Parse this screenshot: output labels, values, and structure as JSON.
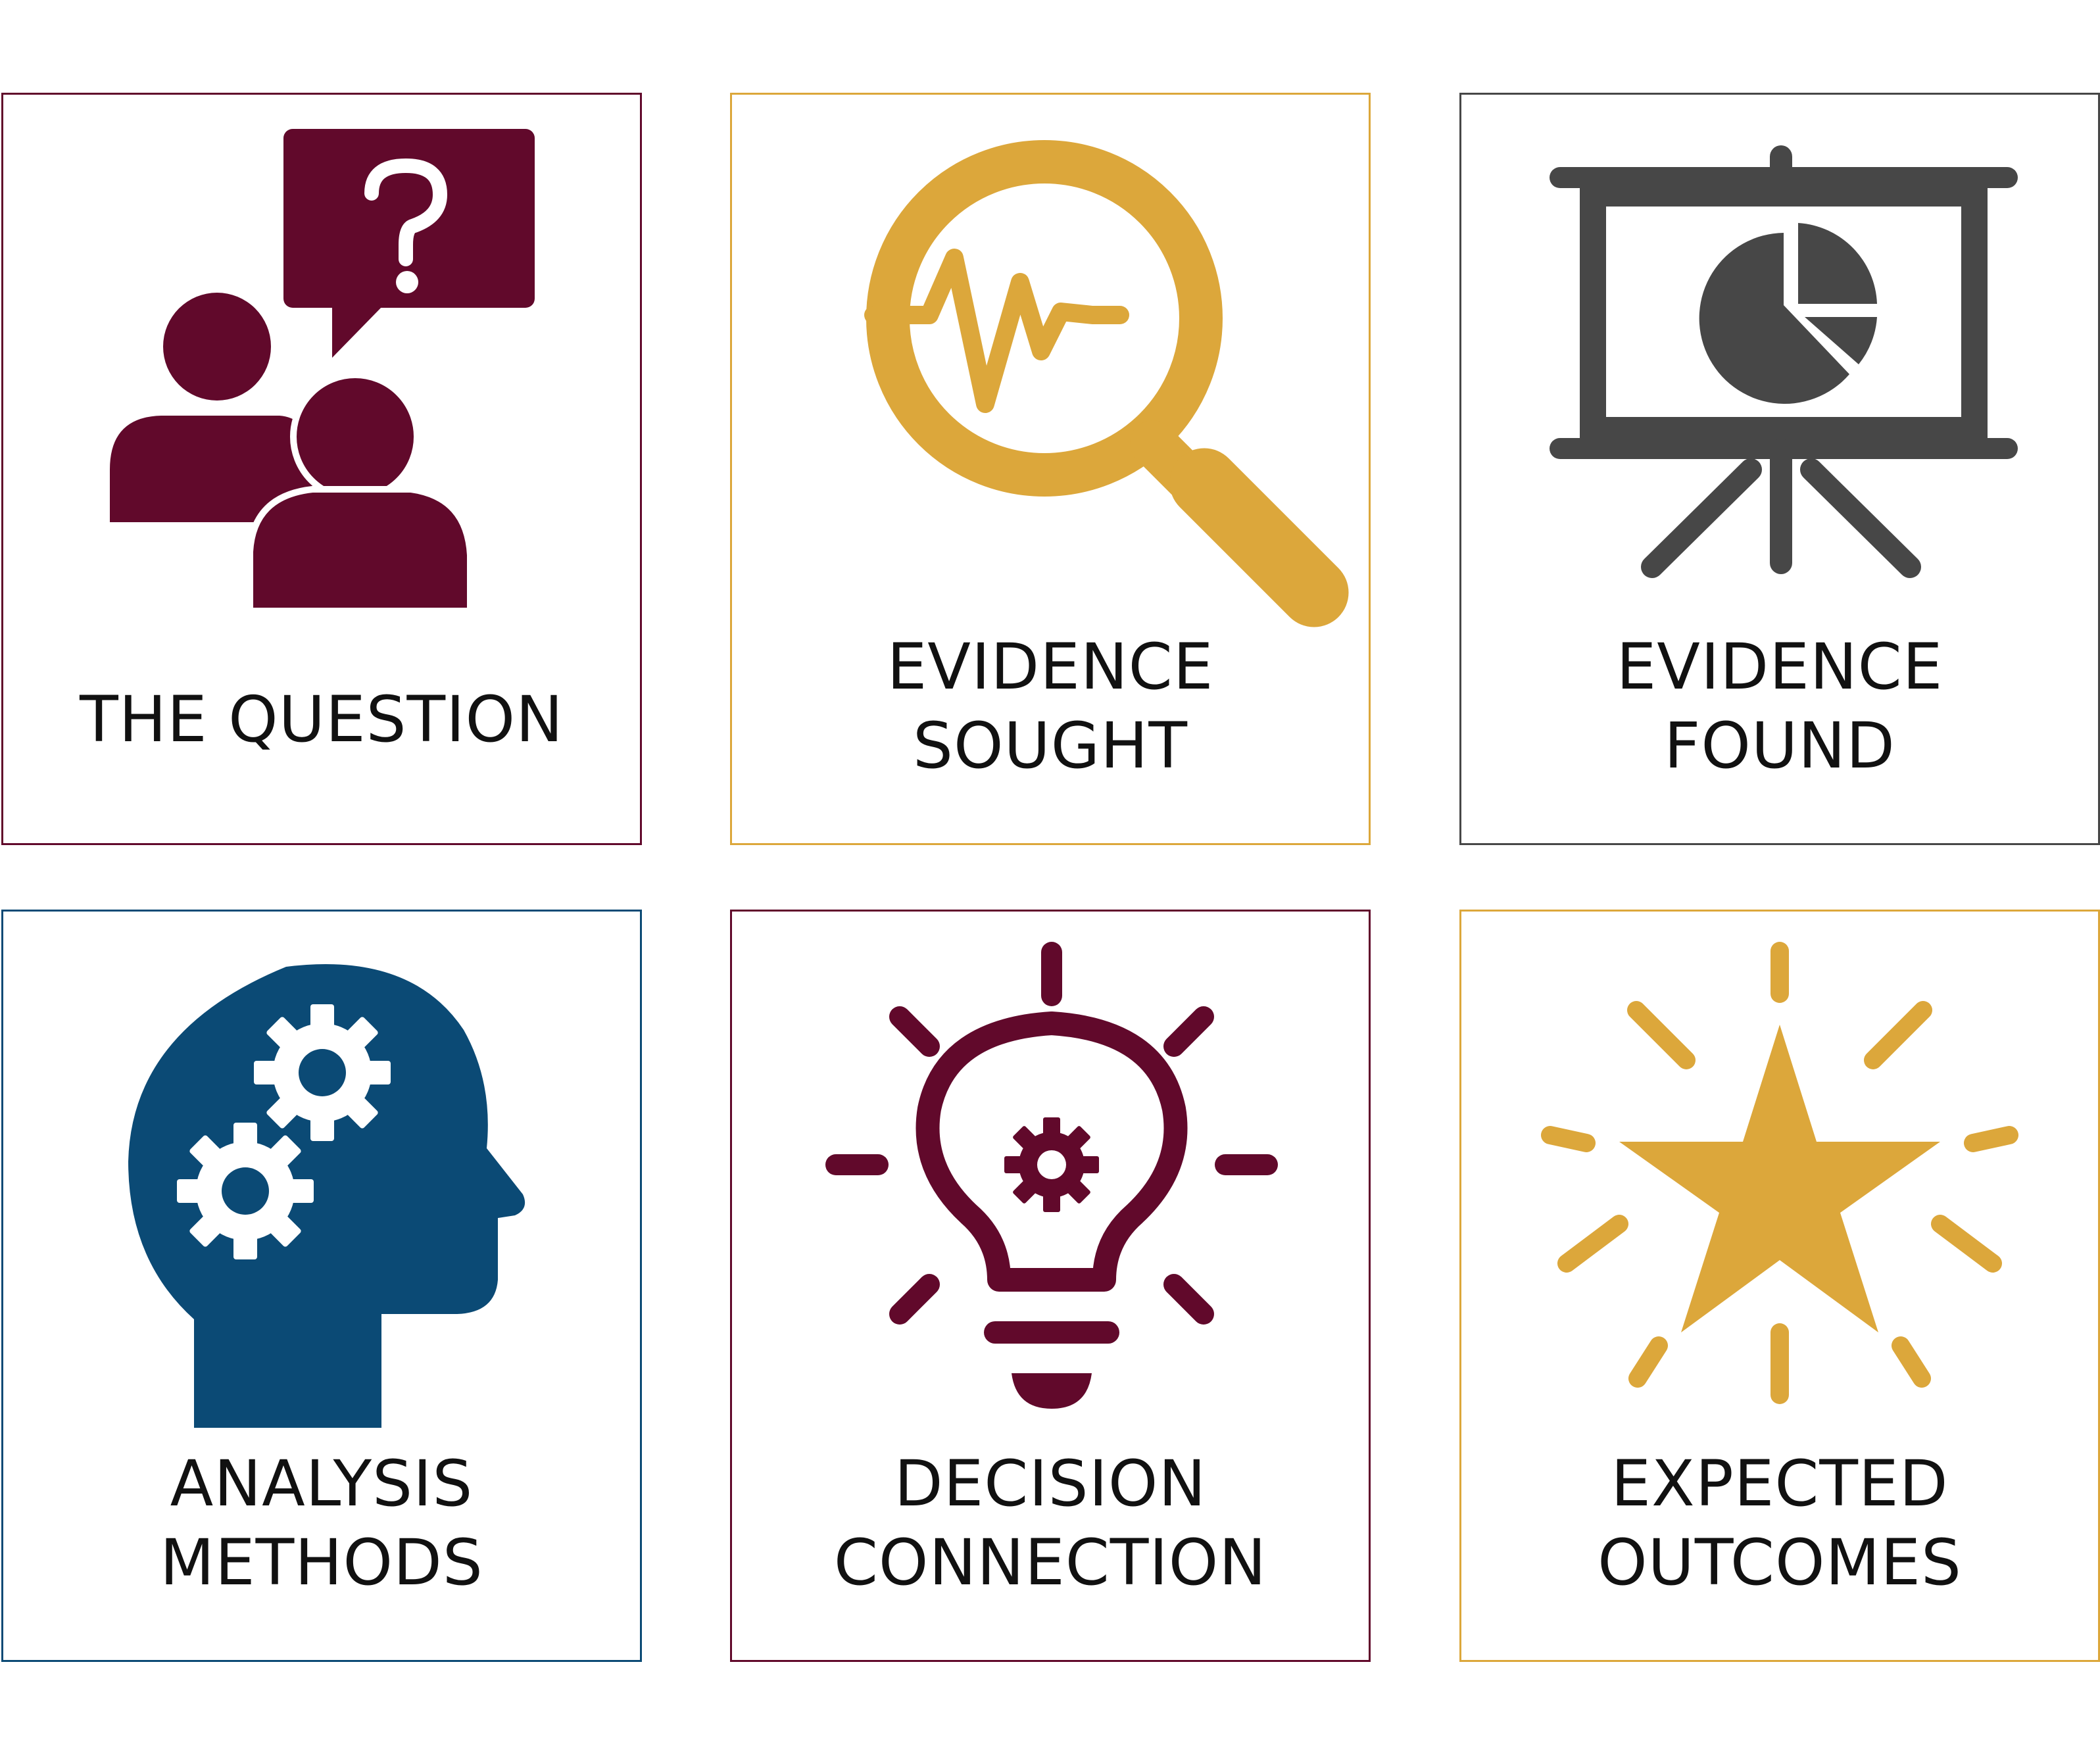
{
  "colors": {
    "maroon": "#61092b",
    "gold": "#dca73b",
    "charcoal": "#474747",
    "navy": "#0b4a75",
    "text": "#111111"
  },
  "cards": [
    {
      "border_color": "#61092b",
      "icon": "question-people-icon",
      "icon_color": "#61092b",
      "line1": "THE QUESTION",
      "line2": ""
    },
    {
      "border_color": "#dca73b",
      "icon": "magnifier-pulse-icon",
      "icon_color": "#dca73b",
      "line1": "EVIDENCE",
      "line2": "SOUGHT"
    },
    {
      "border_color": "#474747",
      "icon": "presentation-pie-chart-icon",
      "icon_color": "#474747",
      "line1": "EVIDENCE",
      "line2": "FOUND"
    },
    {
      "border_color": "#0b4a75",
      "icon": "head-gears-icon",
      "icon_color": "#0b4a75",
      "line1": "ANALYSIS",
      "line2": "METHODS"
    },
    {
      "border_color": "#61092b",
      "icon": "lightbulb-gear-icon",
      "icon_color": "#61092b",
      "line1": "DECISION",
      "line2": "CONNECTION"
    },
    {
      "border_color": "#dca73b",
      "icon": "shining-star-icon",
      "icon_color": "#dca73b",
      "line1": "EXPECTED",
      "line2": "OUTCOMES"
    }
  ]
}
